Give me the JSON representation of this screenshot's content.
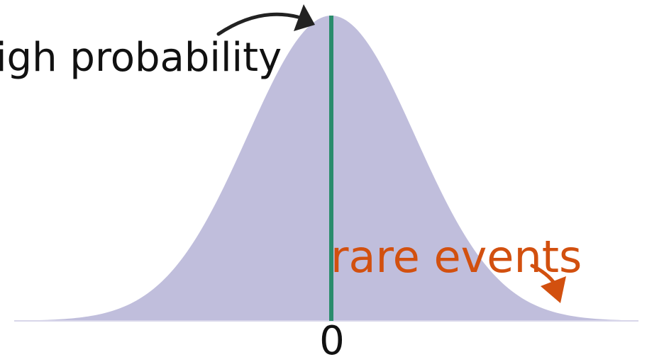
{
  "labels": {
    "high": "igh probability",
    "rare": "rare events",
    "zero": "0"
  },
  "colors": {
    "curve_fill": "#c0bedc",
    "mean_line": "#2a8c6c",
    "high_label": "#111111",
    "high_arrow": "#222222",
    "rare_label": "#d2500f",
    "rare_arrow": "#d2500f",
    "baseline": "#d8d6ea",
    "zero_label": "#111111"
  }
}
